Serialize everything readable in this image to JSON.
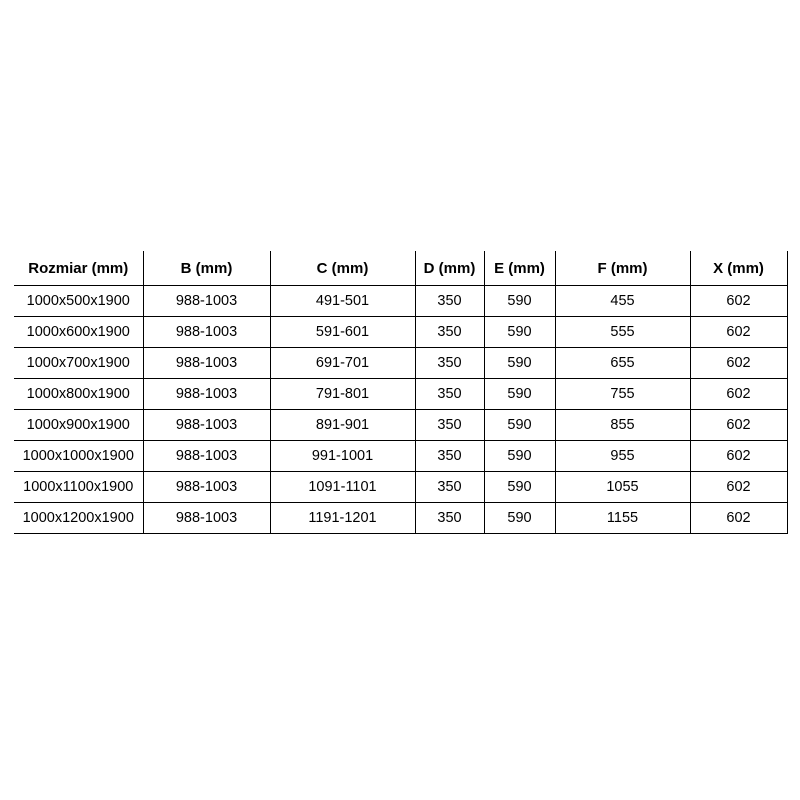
{
  "colors": {
    "background": "#ffffff",
    "border": "#000000",
    "text": "#000000"
  },
  "table": {
    "name": "size-specification-table",
    "columns": [
      "Rozmiar (mm)",
      "B (mm)",
      "C (mm)",
      "D (mm)",
      "E (mm)",
      "F (mm)",
      "X (mm)"
    ],
    "rows": [
      [
        "1000x500x1900",
        "988-1003",
        "491-501",
        "350",
        "590",
        "455",
        "602"
      ],
      [
        "1000x600x1900",
        "988-1003",
        "591-601",
        "350",
        "590",
        "555",
        "602"
      ],
      [
        "1000x700x1900",
        "988-1003",
        "691-701",
        "350",
        "590",
        "655",
        "602"
      ],
      [
        "1000x800x1900",
        "988-1003",
        "791-801",
        "350",
        "590",
        "755",
        "602"
      ],
      [
        "1000x900x1900",
        "988-1003",
        "891-901",
        "350",
        "590",
        "855",
        "602"
      ],
      [
        "1000x1000x1900",
        "988-1003",
        "991-1001",
        "350",
        "590",
        "955",
        "602"
      ],
      [
        "1000x1100x1900",
        "988-1003",
        "1091-1101",
        "350",
        "590",
        "1055",
        "602"
      ],
      [
        "1000x1200x1900",
        "988-1003",
        "1191-1201",
        "350",
        "590",
        "1155",
        "602"
      ]
    ]
  }
}
